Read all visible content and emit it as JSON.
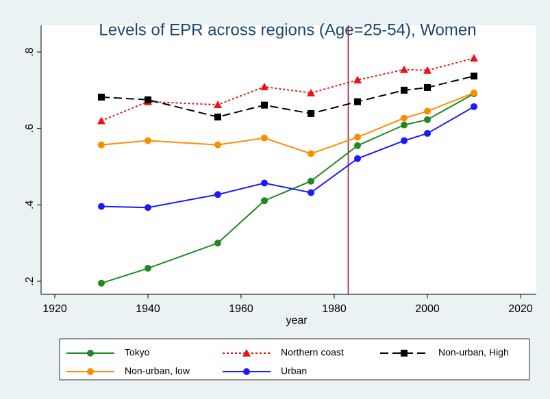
{
  "chart_data": {
    "type": "line",
    "title": "Levels of EPR across regions (Age=25-54), Women",
    "x_label": "year",
    "x": [
      1930,
      1940,
      1955,
      1965,
      1975,
      1985,
      1995,
      2000,
      2010
    ],
    "series": [
      {
        "name": "Tokyo",
        "color": "#1f8a1f",
        "dash": "solid",
        "marker": "circle",
        "values": [
          0.195,
          0.234,
          0.3,
          0.411,
          0.462,
          0.555,
          0.609,
          0.623,
          0.691
        ]
      },
      {
        "name": "Northern coast",
        "color": "#ee1111",
        "dash": "dot",
        "marker": "triangle",
        "values": [
          0.62,
          0.67,
          0.662,
          0.709,
          0.693,
          0.727,
          0.754,
          0.752,
          0.784
        ]
      },
      {
        "name": "Non-urban, High",
        "color": "#000000",
        "dash": "dash",
        "marker": "square",
        "values": [
          0.682,
          0.675,
          0.63,
          0.661,
          0.639,
          0.67,
          0.7,
          0.707,
          0.737
        ]
      },
      {
        "name": "Non-urban, low",
        "color": "#ff8c00",
        "dash": "solid",
        "marker": "circle",
        "values": [
          0.557,
          0.568,
          0.557,
          0.575,
          0.534,
          0.577,
          0.627,
          0.645,
          0.693
        ]
      },
      {
        "name": "Urban",
        "color": "#1a1aff",
        "dash": "solid",
        "marker": "circle",
        "values": [
          0.396,
          0.393,
          0.427,
          0.457,
          0.432,
          0.521,
          0.568,
          0.587,
          0.657
        ]
      }
    ],
    "reference_line_x": 1983,
    "reference_line_color": "#a0153e",
    "xlim": [
      1920,
      2020
    ],
    "xticks": [
      1920,
      1940,
      1960,
      1980,
      2000,
      2020
    ],
    "ylim": [
      0.2,
      0.8
    ],
    "yticks": [
      {
        "value": 0.2,
        "label": ".2"
      },
      {
        "value": 0.4,
        "label": ".4"
      },
      {
        "value": 0.6,
        "label": ".6"
      },
      {
        "value": 0.8,
        "label": ".8"
      }
    ],
    "grid": false,
    "legend_position": "bottom"
  }
}
